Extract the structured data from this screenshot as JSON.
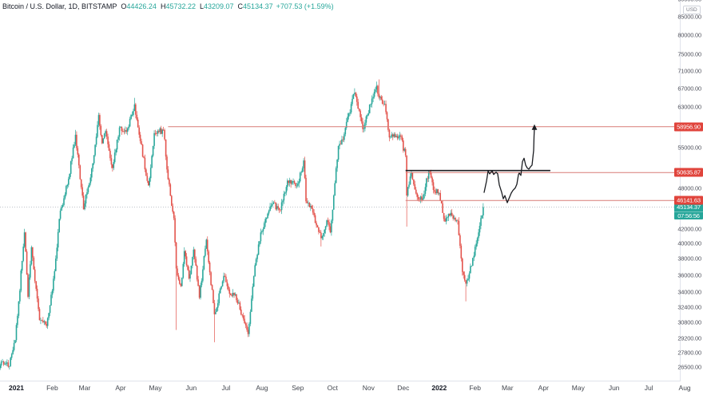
{
  "header": {
    "title": "Bitcoin / U.S. Dollar, 1D, BITSTAMP",
    "o_label": "O",
    "o": "44426.24",
    "h_label": "H",
    "h": "45732.22",
    "l_label": "L",
    "l": "43209.07",
    "c_label": "C",
    "c": "45134.37",
    "change": "+707.53 (+1.59%)"
  },
  "price_axis": {
    "currency": "USD",
    "levels": [
      {
        "label": "58956.90",
        "value": 58956.9
      },
      {
        "label": "50635.87",
        "value": 50635.87
      },
      {
        "label": "46141.63",
        "value": 46141.63
      }
    ],
    "current": {
      "label": "45134.37",
      "value": 45134.37,
      "countdown": "07:56:56"
    }
  },
  "colors": {
    "up": "#2aa79b",
    "down": "#e3544d",
    "ray": "#d87b76",
    "level_chip": "#e0443c",
    "current_chip": "#26a69a",
    "drawing": "#1b1d22",
    "price_line": "#a9aeb8",
    "axis_text": "#51535e"
  },
  "chart_data": {
    "type": "candlestick",
    "symbol": "Bitcoin / U.S. Dollar",
    "exchange": "BITSTAMP",
    "interval": "1D",
    "price_scale": "logarithmic",
    "ohlc_current": {
      "open": 44426.24,
      "high": 45732.22,
      "low": 43209.07,
      "close": 45134.37,
      "change": 707.53,
      "change_pct": 1.59
    },
    "y_axis": {
      "range_top": 90000,
      "range_bottom": 26500,
      "ticks": [
        {
          "label": "90000.00",
          "value": 90000
        },
        {
          "label": "85000.00",
          "value": 85000
        },
        {
          "label": "80000.00",
          "value": 80000
        },
        {
          "label": "75000.00",
          "value": 75000
        },
        {
          "label": "71000.00",
          "value": 71000
        },
        {
          "label": "67000.00",
          "value": 67000
        },
        {
          "label": "63000.00",
          "value": 63000
        },
        {
          "label": "55000.00",
          "value": 55000
        },
        {
          "label": "48000.00",
          "value": 48000
        },
        {
          "label": "42000.00",
          "value": 42000
        },
        {
          "label": "40000.00",
          "value": 40000
        },
        {
          "label": "38000.00",
          "value": 38000
        },
        {
          "label": "36000.00",
          "value": 36000
        },
        {
          "label": "34000.00",
          "value": 34000
        },
        {
          "label": "32400.00",
          "value": 32400
        },
        {
          "label": "30800.00",
          "value": 30800
        },
        {
          "label": "29200.00",
          "value": 29200
        },
        {
          "label": "27800.00",
          "value": 27800
        },
        {
          "label": "26500.00",
          "value": 26500
        }
      ]
    },
    "x_axis": {
      "origin": "2020-12-22",
      "start": "2020-12-15",
      "end": "2022-02-08",
      "months": [
        {
          "label": "2021",
          "date": "2021-01-01",
          "strong": true
        },
        {
          "label": "Feb",
          "date": "2021-02-01"
        },
        {
          "label": "Mar",
          "date": "2021-03-01"
        },
        {
          "label": "Apr",
          "date": "2021-04-01"
        },
        {
          "label": "May",
          "date": "2021-05-01"
        },
        {
          "label": "Jun",
          "date": "2021-06-01"
        },
        {
          "label": "Jul",
          "date": "2021-07-01"
        },
        {
          "label": "Aug",
          "date": "2021-08-01"
        },
        {
          "label": "Sep",
          "date": "2021-09-01"
        },
        {
          "label": "Oct",
          "date": "2021-10-01"
        },
        {
          "label": "Nov",
          "date": "2021-11-01"
        },
        {
          "label": "Dec",
          "date": "2021-12-01"
        },
        {
          "label": "2022",
          "date": "2022-01-01",
          "strong": true
        },
        {
          "label": "Feb",
          "date": "2022-02-01"
        },
        {
          "label": "Mar",
          "date": "2022-03-01"
        },
        {
          "label": "Apr",
          "date": "2022-04-01"
        },
        {
          "label": "May",
          "date": "2022-05-01"
        },
        {
          "label": "Jun",
          "date": "2022-06-01"
        },
        {
          "label": "Jul",
          "date": "2022-07-01"
        },
        {
          "label": "Aug",
          "date": "2022-08-01"
        }
      ]
    },
    "keyframes": [
      [
        "2020-12-15",
        26000,
        null,
        null
      ],
      [
        "2020-12-20",
        27000,
        null,
        null
      ],
      [
        "2020-12-26",
        26600,
        null,
        null
      ],
      [
        "2020-12-31",
        29000,
        null,
        null
      ],
      [
        "2021-01-03",
        33000,
        null,
        null
      ],
      [
        "2021-01-08",
        41500,
        42000,
        null
      ],
      [
        "2021-01-11",
        33500,
        null,
        null
      ],
      [
        "2021-01-14",
        39500,
        null,
        null
      ],
      [
        "2021-01-21",
        31000,
        null,
        null
      ],
      [
        "2021-01-27",
        30400,
        null,
        null
      ],
      [
        "2021-02-01",
        34200,
        null,
        null
      ],
      [
        "2021-02-08",
        44600,
        null,
        null
      ],
      [
        "2021-02-14",
        48600,
        null,
        null
      ],
      [
        "2021-02-21",
        57400,
        58350,
        null
      ],
      [
        "2021-02-28",
        44800,
        null,
        null
      ],
      [
        "2021-03-08",
        52200,
        null,
        null
      ],
      [
        "2021-03-13",
        61300,
        null,
        null
      ],
      [
        "2021-03-16",
        55800,
        null,
        null
      ],
      [
        "2021-03-19",
        58100,
        null,
        null
      ],
      [
        "2021-03-25",
        51400,
        null,
        null
      ],
      [
        "2021-03-31",
        58800,
        null,
        null
      ],
      [
        "2021-04-06",
        58000,
        null,
        null
      ],
      [
        "2021-04-13",
        63500,
        64900,
        null
      ],
      [
        "2021-04-18",
        56200,
        null,
        null
      ],
      [
        "2021-04-25",
        48500,
        null,
        null
      ],
      [
        "2021-04-30",
        57700,
        null,
        null
      ],
      [
        "2021-05-08",
        58300,
        null,
        null
      ],
      [
        "2021-05-12",
        49500,
        null,
        null
      ],
      [
        "2021-05-17",
        43500,
        null,
        null
      ],
      [
        "2021-05-19",
        36800,
        null,
        30000
      ],
      [
        "2021-05-23",
        34700,
        null,
        null
      ],
      [
        "2021-05-26",
        39000,
        null,
        null
      ],
      [
        "2021-05-30",
        35600,
        null,
        null
      ],
      [
        "2021-06-03",
        39200,
        null,
        null
      ],
      [
        "2021-06-08",
        33400,
        null,
        null
      ],
      [
        "2021-06-14",
        40500,
        null,
        null
      ],
      [
        "2021-06-21",
        31600,
        null,
        28800
      ],
      [
        "2021-06-29",
        35900,
        null,
        null
      ],
      [
        "2021-07-05",
        33700,
        null,
        null
      ],
      [
        "2021-07-09",
        33800,
        null,
        null
      ],
      [
        "2021-07-20",
        29600,
        null,
        29300
      ],
      [
        "2021-07-26",
        37200,
        null,
        null
      ],
      [
        "2021-07-31",
        41500,
        null,
        null
      ],
      [
        "2021-08-07",
        44600,
        null,
        null
      ],
      [
        "2021-08-10",
        45600,
        null,
        null
      ],
      [
        "2021-08-17",
        44700,
        null,
        null
      ],
      [
        "2021-08-23",
        49300,
        null,
        null
      ],
      [
        "2021-08-29",
        48900,
        null,
        null
      ],
      [
        "2021-09-01",
        48800,
        null,
        null
      ],
      [
        "2021-09-06",
        52700,
        null,
        null
      ],
      [
        "2021-09-08",
        46000,
        null,
        null
      ],
      [
        "2021-09-13",
        44900,
        null,
        null
      ],
      [
        "2021-09-21",
        40700,
        null,
        39600
      ],
      [
        "2021-09-26",
        43200,
        null,
        null
      ],
      [
        "2021-09-29",
        41500,
        null,
        null
      ],
      [
        "2021-10-06",
        55300,
        null,
        null
      ],
      [
        "2021-10-11",
        57500,
        null,
        null
      ],
      [
        "2021-10-15",
        61600,
        null,
        null
      ],
      [
        "2021-10-20",
        66000,
        67000,
        null
      ],
      [
        "2021-10-27",
        58500,
        null,
        null
      ],
      [
        "2021-10-31",
        61300,
        null,
        null
      ],
      [
        "2021-11-08",
        67550,
        68500,
        null
      ],
      [
        "2021-11-10",
        64950,
        69000,
        null
      ],
      [
        "2021-11-15",
        63600,
        null,
        null
      ],
      [
        "2021-11-19",
        56900,
        null,
        null
      ],
      [
        "2021-11-25",
        57200,
        null,
        null
      ],
      [
        "2021-11-28",
        57300,
        null,
        null
      ],
      [
        "2021-12-03",
        53600,
        null,
        null
      ],
      [
        "2021-12-04",
        46900,
        null,
        42300
      ],
      [
        "2021-12-08",
        50600,
        null,
        null
      ],
      [
        "2021-12-13",
        46700,
        null,
        null
      ],
      [
        "2021-12-17",
        46200,
        null,
        null
      ],
      [
        "2021-12-23",
        50800,
        null,
        null
      ],
      [
        "2021-12-28",
        47500,
        null,
        null
      ],
      [
        "2022-01-01",
        47300,
        null,
        null
      ],
      [
        "2022-01-05",
        43400,
        null,
        null
      ],
      [
        "2022-01-12",
        43900,
        null,
        null
      ],
      [
        "2022-01-17",
        43100,
        null,
        null
      ],
      [
        "2022-01-21",
        36400,
        null,
        null
      ],
      [
        "2022-01-24",
        35000,
        null,
        33000
      ],
      [
        "2022-01-31",
        38400,
        null,
        null
      ],
      [
        "2022-02-04",
        41500,
        null,
        null
      ],
      [
        "2022-02-07",
        43900,
        null,
        null
      ],
      [
        "2022-02-08",
        45134.37,
        45732.22,
        null
      ]
    ],
    "annotations": {
      "horizontal_rays": [
        {
          "price": 58956.9,
          "start_date": "2021-05-12"
        },
        {
          "price": 50635.87,
          "start_date": "2021-12-03"
        },
        {
          "price": 46141.63,
          "start_date": "2021-12-03"
        }
      ],
      "resistance_segment": {
        "start_date": "2021-12-03",
        "end_date": "2022-04-07",
        "price": 50900
      },
      "current_price_line": 45134.37,
      "projection_path": {
        "arrow": "up",
        "points": [
          [
            606,
            47400
          ],
          [
            609,
            49200
          ],
          [
            611,
            50900
          ],
          [
            613,
            50400
          ],
          [
            616,
            50900
          ],
          [
            618,
            50300
          ],
          [
            621,
            50700
          ],
          [
            623,
            50400
          ],
          [
            625,
            48600
          ],
          [
            628,
            47400
          ],
          [
            630,
            46400
          ],
          [
            632,
            46900
          ],
          [
            635,
            45800
          ],
          [
            637,
            46400
          ],
          [
            640,
            47300
          ],
          [
            642,
            47700
          ],
          [
            645,
            48100
          ],
          [
            647,
            48700
          ],
          [
            649,
            50300
          ],
          [
            650,
            50550
          ],
          [
            652,
            50150
          ],
          [
            654,
            52500
          ],
          [
            656,
            53100
          ],
          [
            658,
            51900
          ],
          [
            660,
            51400
          ],
          [
            662,
            51200
          ],
          [
            664,
            51600
          ],
          [
            666,
            51900
          ],
          [
            668,
            54500
          ],
          [
            668.5,
            57100
          ],
          [
            669,
            58800
          ]
        ]
      }
    }
  }
}
